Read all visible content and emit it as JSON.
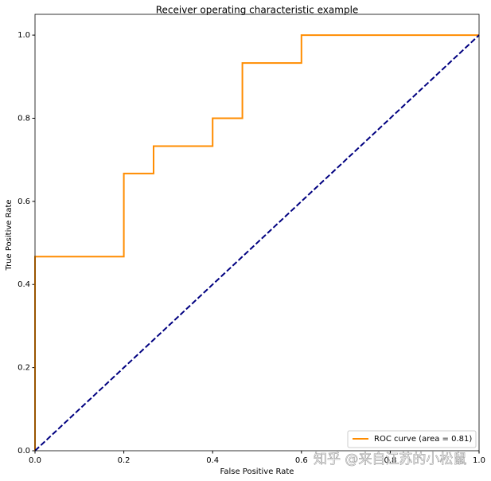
{
  "chart_data": {
    "type": "line",
    "title": "Receiver operating characteristic example",
    "xlabel": "False Positive Rate",
    "ylabel": "True Positive Rate",
    "xlim": [
      0,
      1
    ],
    "ylim": [
      0,
      1.05
    ],
    "xticks": [
      {
        "value": 0,
        "label": "0.0"
      },
      0.2,
      0.4,
      0.6,
      0.8,
      {
        "value": 1,
        "label": "1.0"
      }
    ],
    "yticks": [
      {
        "value": 0,
        "label": "0.0"
      },
      0.2,
      0.4,
      0.6,
      0.8,
      {
        "value": 1,
        "label": "1.0"
      }
    ],
    "legend": "lower right",
    "series": [
      {
        "name": "ROC curve (area = 0.81)",
        "color": "#ff8c00",
        "dash": false,
        "x": [
          0,
          0,
          0.2,
          0.2,
          0.267,
          0.267,
          0.4,
          0.4,
          0.467,
          0.467,
          0.6,
          0.6,
          1
        ],
        "values": [
          0,
          0.467,
          0.467,
          0.667,
          0.667,
          0.733,
          0.733,
          0.8,
          0.8,
          0.933,
          0.933,
          1,
          1
        ]
      },
      {
        "color": "#000080",
        "dash": true,
        "x": [
          0,
          1
        ],
        "values": [
          0,
          1
        ]
      }
    ],
    "watermark": "知乎 @来自江苏的小松鼠"
  }
}
